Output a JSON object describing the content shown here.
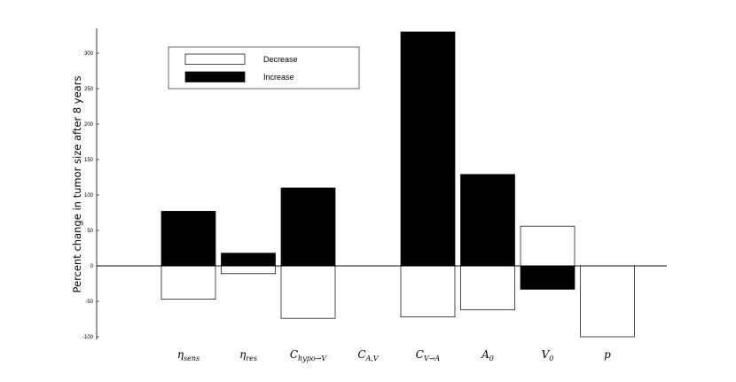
{
  "chart_data": {
    "type": "bar",
    "ylabel": "Percent change in tumor size after 8 years",
    "ylim": [
      -105,
      332
    ],
    "yticks": [
      -100,
      -50,
      0,
      50,
      100,
      150,
      200,
      250,
      300
    ],
    "categories": [
      {
        "base": "η",
        "sub": "sens",
        "sup": ""
      },
      {
        "base": "η",
        "sub": "res",
        "sup": ""
      },
      {
        "base": "C",
        "sub": "hypo→V",
        "sup": ""
      },
      {
        "base": "C",
        "sub": "A,V",
        "sup": ""
      },
      {
        "base": "C",
        "sub": "V→A",
        "sup": ""
      },
      {
        "base": "A",
        "sub": "0",
        "sup": ""
      },
      {
        "base": "V",
        "sub": "0",
        "sup": ""
      },
      {
        "base": "p",
        "sub": "",
        "sup": ""
      }
    ],
    "series": [
      {
        "name": "Decrease",
        "color": "#ffffff",
        "values": [
          -47,
          -11,
          -74,
          0,
          -72,
          -62,
          56,
          -100
        ]
      },
      {
        "name": "Increase",
        "color": "#000000",
        "values": [
          77,
          18,
          110,
          0,
          330,
          129,
          -33,
          0
        ]
      }
    ],
    "legend_position": "top-left",
    "grid": false
  }
}
